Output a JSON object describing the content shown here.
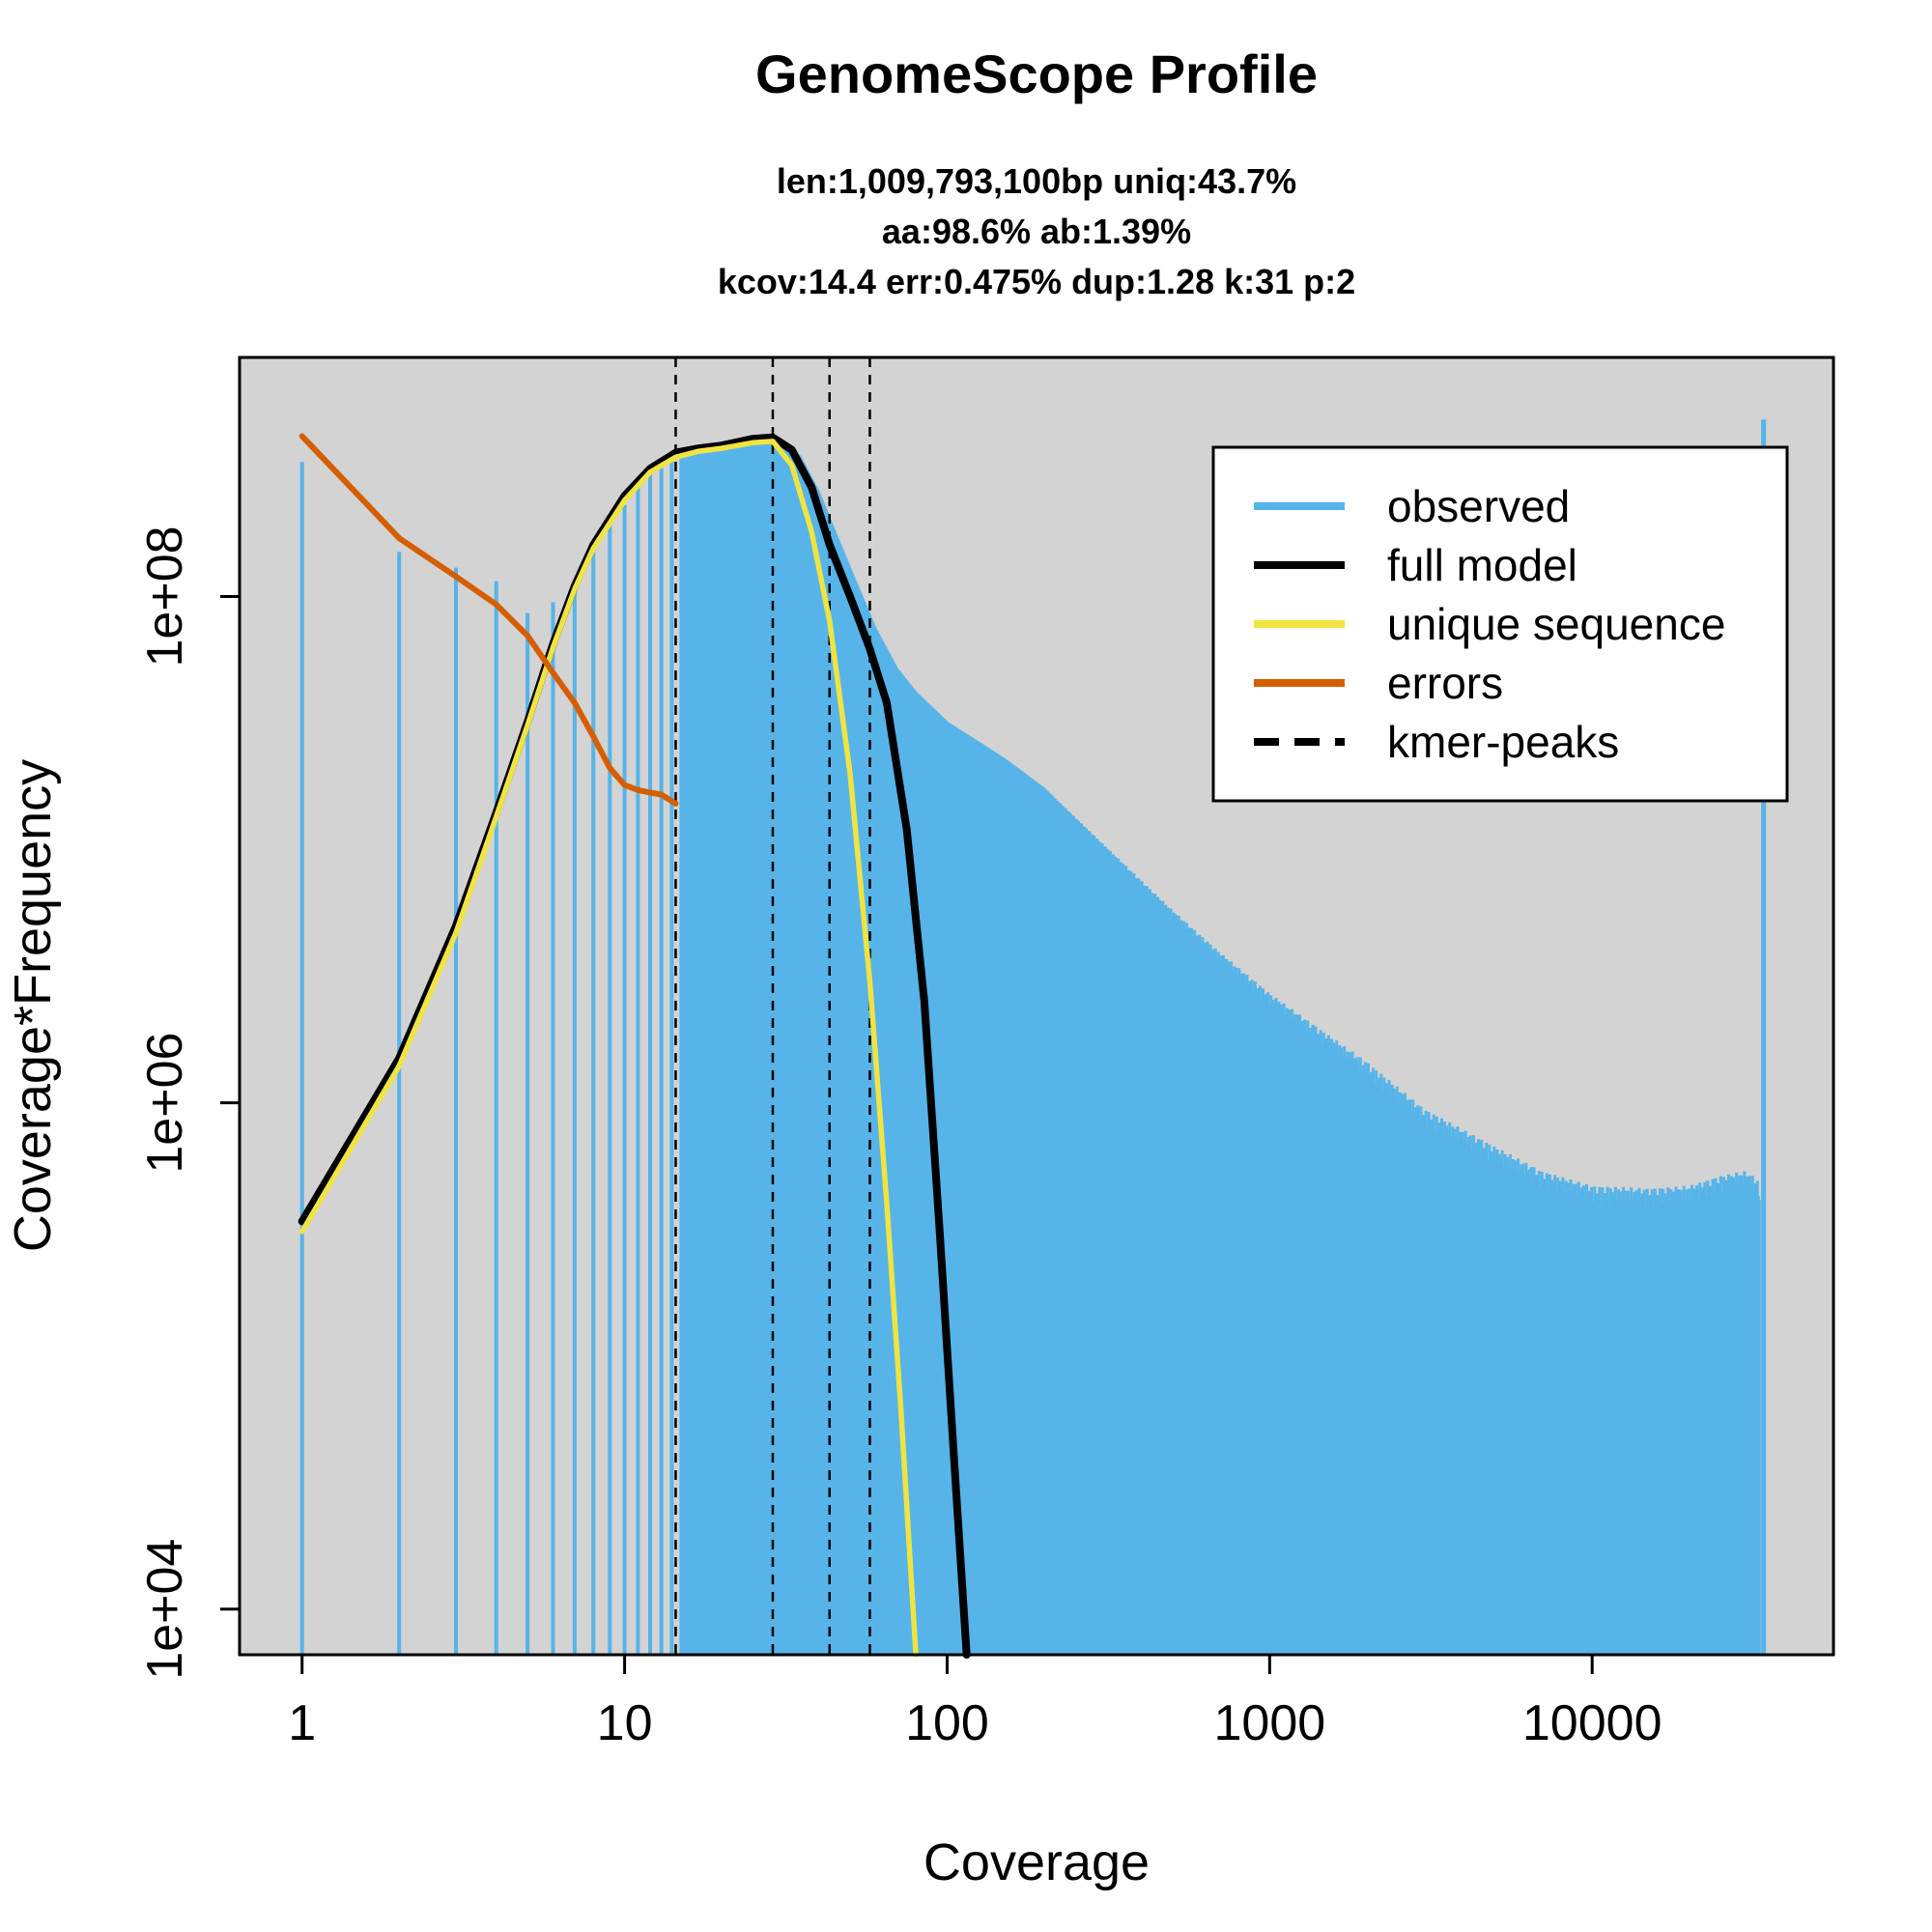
{
  "chart_data": {
    "type": "line",
    "title": "GenomeScope Profile",
    "subtitle_lines": [
      "len:1,009,793,100bp uniq:43.7%",
      "aa:98.6% ab:1.39%",
      "kcov:14.4 err:0.475%  dup:1.28  k:31 p:2"
    ],
    "xlabel": "Coverage",
    "ylabel": "Coverage*Frequency",
    "x_scale": "log",
    "y_scale": "log",
    "xlim": [
      0.64,
      56000
    ],
    "ylim": [
      6600,
      880000000
    ],
    "x_ticks": [
      {
        "value": 1,
        "label": "1"
      },
      {
        "value": 10,
        "label": "10"
      },
      {
        "value": 100,
        "label": "100"
      },
      {
        "value": 1000,
        "label": "1000"
      },
      {
        "value": 10000,
        "label": "10000"
      }
    ],
    "y_ticks": [
      {
        "value": 10000,
        "label": "1e+04"
      },
      {
        "value": 1000000,
        "label": "1e+06"
      },
      {
        "value": 100000000,
        "label": "1e+08"
      }
    ],
    "grid": false,
    "background_color": "#d3d3d3",
    "legend": {
      "position": "top-right",
      "entries": [
        {
          "label": "observed",
          "color": "#56b4e9",
          "style": "solid"
        },
        {
          "label": "full model",
          "color": "#000000",
          "style": "solid"
        },
        {
          "label": "unique sequence",
          "color": "#f0e442",
          "style": "solid"
        },
        {
          "label": "errors",
          "color": "#d55e00",
          "style": "solid"
        },
        {
          "label": "kmer-peaks",
          "color": "#000000",
          "style": "dashed"
        }
      ]
    },
    "kmer_peaks": [
      14.4,
      28.8,
      43.2,
      57.6
    ],
    "series": [
      {
        "name": "observed",
        "kind": "histogram",
        "color": "#56b4e9",
        "points": [
          [
            1,
            340000000
          ],
          [
            2,
            150000000
          ],
          [
            3,
            130000000
          ],
          [
            4,
            115000000
          ],
          [
            5,
            86000000
          ],
          [
            6,
            95000000
          ],
          [
            7,
            115000000
          ],
          [
            8,
            150000000
          ],
          [
            9,
            190000000
          ],
          [
            10,
            230000000
          ],
          [
            11,
            270000000
          ],
          [
            12,
            310000000
          ],
          [
            13,
            340000000
          ],
          [
            14,
            360000000
          ],
          [
            15,
            375000000
          ],
          [
            17,
            385000000
          ],
          [
            20,
            395000000
          ],
          [
            25,
            410000000
          ],
          [
            30,
            405000000
          ],
          [
            35,
            360000000
          ],
          [
            40,
            260000000
          ],
          [
            45,
            180000000
          ],
          [
            50,
            130000000
          ],
          [
            60,
            75000000
          ],
          [
            70,
            52000000
          ],
          [
            80,
            42000000
          ],
          [
            100,
            32000000
          ],
          [
            150,
            23000000
          ],
          [
            200,
            17500000
          ],
          [
            300,
            10500000
          ],
          [
            500,
            5500000
          ],
          [
            700,
            3700000
          ],
          [
            1000,
            2500000
          ],
          [
            1500,
            1700000
          ],
          [
            2000,
            1300000
          ],
          [
            3000,
            850000
          ],
          [
            5000,
            600000
          ],
          [
            7000,
            480000
          ],
          [
            10000,
            420000
          ],
          [
            15000,
            410000
          ],
          [
            20000,
            420000
          ],
          [
            25000,
            460000
          ],
          [
            30000,
            480000
          ],
          [
            33000,
            440000
          ],
          [
            34000,
            500000000
          ]
        ]
      },
      {
        "name": "full model",
        "kind": "line",
        "color": "#000000",
        "points": [
          [
            1,
            340000
          ],
          [
            2,
            1500000
          ],
          [
            3,
            5000000
          ],
          [
            4,
            14000000
          ],
          [
            5,
            32000000
          ],
          [
            6,
            65000000
          ],
          [
            7,
            110000000
          ],
          [
            8,
            160000000
          ],
          [
            10,
            250000000
          ],
          [
            12,
            320000000
          ],
          [
            14.4,
            370000000
          ],
          [
            17,
            385000000
          ],
          [
            20,
            395000000
          ],
          [
            25,
            420000000
          ],
          [
            28.8,
            425000000
          ],
          [
            33,
            380000000
          ],
          [
            38,
            270000000
          ],
          [
            43.2,
            160000000
          ],
          [
            50,
            100000000
          ],
          [
            57.6,
            62000000
          ],
          [
            65,
            38000000
          ],
          [
            75,
            12000000
          ],
          [
            85,
            2500000
          ],
          [
            95,
            300000
          ],
          [
            105,
            40000
          ],
          [
            115,
            6000
          ]
        ]
      },
      {
        "name": "unique sequence",
        "kind": "line",
        "color": "#f0e442",
        "points": [
          [
            1,
            310000
          ],
          [
            2,
            1400000
          ],
          [
            3,
            4700000
          ],
          [
            4,
            13500000
          ],
          [
            5,
            31000000
          ],
          [
            6,
            63000000
          ],
          [
            7,
            107000000
          ],
          [
            8,
            155000000
          ],
          [
            10,
            240000000
          ],
          [
            12,
            310000000
          ],
          [
            14.4,
            355000000
          ],
          [
            17,
            375000000
          ],
          [
            20,
            385000000
          ],
          [
            25,
            405000000
          ],
          [
            28.8,
            410000000
          ],
          [
            33,
            330000000
          ],
          [
            38,
            180000000
          ],
          [
            43.2,
            80000000
          ],
          [
            50,
            20000000
          ],
          [
            57.6,
            3000000
          ],
          [
            65,
            400000
          ],
          [
            72,
            60000
          ],
          [
            80,
            6000
          ]
        ]
      },
      {
        "name": "errors",
        "kind": "line",
        "color": "#d55e00",
        "points": [
          [
            1,
            430000000
          ],
          [
            2,
            170000000
          ],
          [
            3,
            120000000
          ],
          [
            4,
            93000000
          ],
          [
            5,
            70000000
          ],
          [
            6,
            50000000
          ],
          [
            7,
            38000000
          ],
          [
            8,
            28000000
          ],
          [
            9,
            21000000
          ],
          [
            10,
            18000000
          ],
          [
            11,
            17200000
          ],
          [
            12,
            16800000
          ],
          [
            13,
            16500000
          ],
          [
            14.4,
            15200000
          ]
        ]
      }
    ]
  }
}
